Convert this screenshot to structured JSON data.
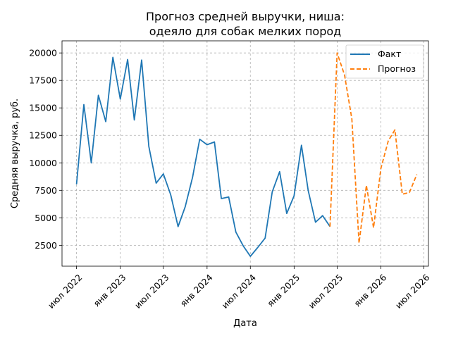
{
  "chart_data": {
    "type": "line",
    "title_line1": "Прогноз средней выручки, ниша:",
    "title_line2": "одеяло для собак мелких пород",
    "xlabel": "Дата",
    "ylabel": "Средняя выручка, руб.",
    "xlim": [
      "2022-05-01",
      "2026-07-20"
    ],
    "ylim": [
      600,
      21100
    ],
    "grid": true,
    "legend_position": "top-right",
    "x_ticks": [
      {
        "date": "2022-07-01",
        "label": "июл 2022"
      },
      {
        "date": "2023-01-01",
        "label": "янв 2023"
      },
      {
        "date": "2023-07-01",
        "label": "июл 2023"
      },
      {
        "date": "2024-01-01",
        "label": "янв 2024"
      },
      {
        "date": "2024-07-01",
        "label": "июл 2024"
      },
      {
        "date": "2025-01-01",
        "label": "янв 2025"
      },
      {
        "date": "2025-07-01",
        "label": "июл 2025"
      },
      {
        "date": "2026-01-01",
        "label": "янв 2026"
      },
      {
        "date": "2026-07-01",
        "label": "июл 2026"
      }
    ],
    "y_ticks": [
      {
        "value": 2500,
        "label": "2500"
      },
      {
        "value": 5000,
        "label": "5000"
      },
      {
        "value": 7500,
        "label": "7500"
      },
      {
        "value": 10000,
        "label": "10000"
      },
      {
        "value": 12500,
        "label": "12500"
      },
      {
        "value": 15000,
        "label": "15000"
      },
      {
        "value": 17500,
        "label": "17500"
      },
      {
        "value": 20000,
        "label": "20000"
      }
    ],
    "series": [
      {
        "name": "Факт",
        "color": "#1f77b4",
        "style": "solid",
        "points": [
          {
            "x": "2022-07-01",
            "y": 8050
          },
          {
            "x": "2022-08-01",
            "y": 15300
          },
          {
            "x": "2022-09-01",
            "y": 10000
          },
          {
            "x": "2022-10-01",
            "y": 16150
          },
          {
            "x": "2022-11-01",
            "y": 13750
          },
          {
            "x": "2022-12-01",
            "y": 19600
          },
          {
            "x": "2023-01-01",
            "y": 15800
          },
          {
            "x": "2023-02-01",
            "y": 19400
          },
          {
            "x": "2023-03-01",
            "y": 13900
          },
          {
            "x": "2023-04-01",
            "y": 19350
          },
          {
            "x": "2023-05-01",
            "y": 11500
          },
          {
            "x": "2023-06-01",
            "y": 8150
          },
          {
            "x": "2023-07-01",
            "y": 9000
          },
          {
            "x": "2023-08-01",
            "y": 7100
          },
          {
            "x": "2023-09-01",
            "y": 4200
          },
          {
            "x": "2023-10-01",
            "y": 6000
          },
          {
            "x": "2023-11-01",
            "y": 8700
          },
          {
            "x": "2023-12-01",
            "y": 12150
          },
          {
            "x": "2024-01-01",
            "y": 11650
          },
          {
            "x": "2024-02-01",
            "y": 11900
          },
          {
            "x": "2024-03-01",
            "y": 6750
          },
          {
            "x": "2024-04-01",
            "y": 6900
          },
          {
            "x": "2024-05-01",
            "y": 3700
          },
          {
            "x": "2024-06-01",
            "y": 2450
          },
          {
            "x": "2024-07-01",
            "y": 1500
          },
          {
            "x": "2024-08-01",
            "y": 2300
          },
          {
            "x": "2024-09-01",
            "y": 3150
          },
          {
            "x": "2024-10-01",
            "y": 7350
          },
          {
            "x": "2024-11-01",
            "y": 9200
          },
          {
            "x": "2024-12-01",
            "y": 5400
          },
          {
            "x": "2025-01-01",
            "y": 7000
          },
          {
            "x": "2025-02-01",
            "y": 11600
          },
          {
            "x": "2025-03-01",
            "y": 7500
          },
          {
            "x": "2025-04-01",
            "y": 4600
          },
          {
            "x": "2025-05-01",
            "y": 5200
          },
          {
            "x": "2025-06-01",
            "y": 4200
          }
        ]
      },
      {
        "name": "Прогноз",
        "color": "#ff7f0e",
        "style": "dashed",
        "points": [
          {
            "x": "2025-06-01",
            "y": 4200
          },
          {
            "x": "2025-07-01",
            "y": 20000
          },
          {
            "x": "2025-08-01",
            "y": 18000
          },
          {
            "x": "2025-09-01",
            "y": 14000
          },
          {
            "x": "2025-10-01",
            "y": 2700
          },
          {
            "x": "2025-11-01",
            "y": 7950
          },
          {
            "x": "2025-12-01",
            "y": 4100
          },
          {
            "x": "2026-01-01",
            "y": 9500
          },
          {
            "x": "2026-02-01",
            "y": 12000
          },
          {
            "x": "2026-03-01",
            "y": 13000
          },
          {
            "x": "2026-04-01",
            "y": 7150
          },
          {
            "x": "2026-05-01",
            "y": 7300
          },
          {
            "x": "2026-06-01",
            "y": 8950
          }
        ]
      }
    ]
  }
}
